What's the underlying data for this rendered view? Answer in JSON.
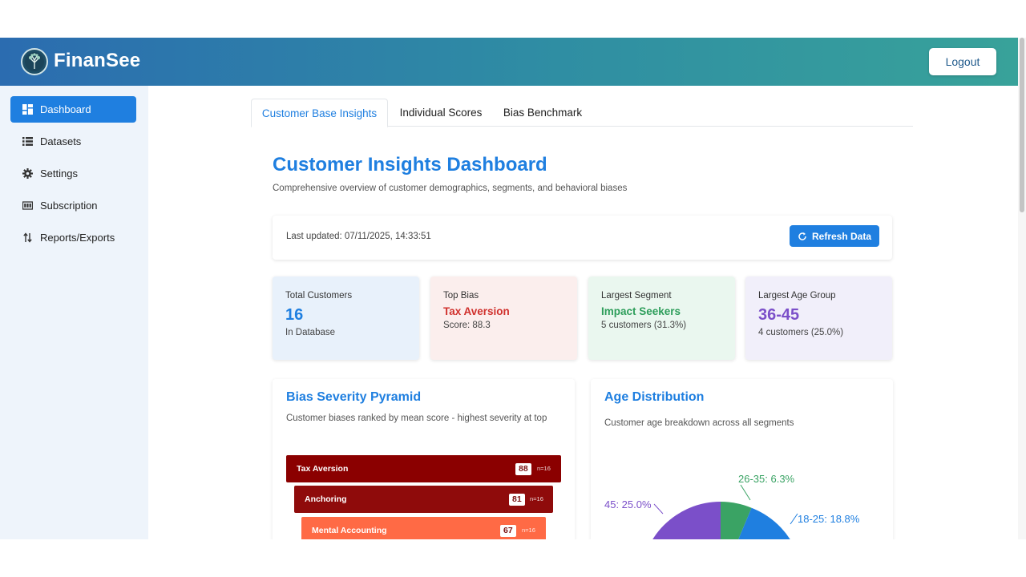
{
  "header": {
    "brand": "FinanSee",
    "logout_label": "Logout"
  },
  "sidebar": {
    "items": [
      {
        "label": "Dashboard",
        "icon": "dashboard-icon",
        "active": true
      },
      {
        "label": "Datasets",
        "icon": "list-icon",
        "active": false
      },
      {
        "label": "Settings",
        "icon": "gear-icon",
        "active": false
      },
      {
        "label": "Subscription",
        "icon": "card-icon",
        "active": false
      },
      {
        "label": "Reports/Exports",
        "icon": "sort-arrows-icon",
        "active": false
      }
    ]
  },
  "tabs": [
    {
      "label": "Customer Base Insights",
      "active": true
    },
    {
      "label": "Individual Scores",
      "active": false
    },
    {
      "label": "Bias Benchmark",
      "active": false
    }
  ],
  "page": {
    "title": "Customer Insights Dashboard",
    "subtitle": "Comprehensive overview of customer demographics, segments, and behavioral biases"
  },
  "update": {
    "text": "Last updated: 07/11/2025, 14:33:51",
    "refresh_label": "Refresh Data"
  },
  "stats": [
    {
      "label": "Total Customers",
      "value": "16",
      "sub": "In Database",
      "color": "#1f7fe0",
      "bg": "#e8f1fb"
    },
    {
      "label": "Top Bias",
      "value": "Tax Aversion",
      "sub": "Score: 88.3",
      "color": "#d0312d",
      "bg": "#fbeeed"
    },
    {
      "label": "Largest Segment",
      "value": "Impact Seekers",
      "sub": "5 customers (31.3%)",
      "color": "#2e9e5b",
      "bg": "#eaf7ef"
    },
    {
      "label": "Largest Age Group",
      "value": "36-45",
      "sub": "4 customers (25.0%)",
      "color": "#7b4fc9",
      "bg": "#f1effa"
    }
  ],
  "pyramid": {
    "title": "Bias Severity Pyramid",
    "subtitle": "Customer biases ranked by mean score - highest severity at top",
    "bars": [
      {
        "name": "Tax Aversion",
        "score": "88",
        "n": "n=16",
        "color": "#8b0000"
      },
      {
        "name": "Anchoring",
        "score": "81",
        "n": "n=16",
        "color": "#8f0b0b"
      },
      {
        "name": "Mental Accounting",
        "score": "67",
        "n": "n=16",
        "color": "#ff6a45"
      }
    ]
  },
  "age": {
    "title": "Age Distribution",
    "subtitle": "Customer age breakdown across all segments",
    "slices": [
      {
        "label": "26-35: 6.3%",
        "value": 6.3,
        "color": "#3aa364"
      },
      {
        "label": "18-25: 18.8%",
        "value": 18.8,
        "color": "#1f7fe0"
      },
      {
        "label": "45: 25.0%",
        "value": 25.0,
        "color": "#7b4fc9"
      }
    ]
  }
}
